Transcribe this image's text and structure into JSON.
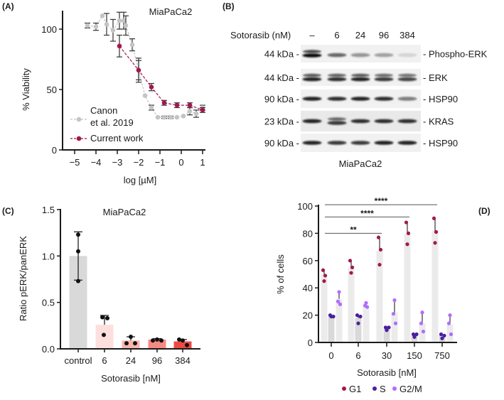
{
  "panel_labels": [
    "(A)",
    "(B)",
    "(C)",
    "(D)"
  ],
  "blot": {
    "treatment_label": "Sotorasib (nM)",
    "lanes": [
      "–",
      "6",
      "24",
      "96",
      "384"
    ],
    "cell_line": "MiaPaCa2",
    "rows": [
      {
        "size": "44 kDa -",
        "protein": "- Phospho-ERK",
        "band_intensity": [
          1.0,
          0.6,
          0.4,
          0.35,
          0.12
        ],
        "double": [
          true,
          false,
          false,
          false,
          false
        ]
      },
      {
        "size": "44 kDa -",
        "protein": "- ERK",
        "band_intensity": [
          0.9,
          0.85,
          0.9,
          0.8,
          0.75
        ],
        "double": [
          true,
          true,
          true,
          true,
          true
        ]
      },
      {
        "size": "90 kDa -",
        "protein": "- HSP90",
        "band_intensity": [
          0.9,
          0.85,
          0.9,
          0.85,
          0.5
        ],
        "double": [
          false,
          false,
          false,
          false,
          false
        ]
      },
      {
        "size": "23 kDa -",
        "protein": "- KRAS",
        "band_intensity": [
          0.9,
          0.8,
          0.85,
          0.85,
          0.85
        ],
        "double": [
          false,
          true,
          false,
          false,
          false
        ]
      },
      {
        "size": "90 kDa -",
        "protein": "- HSP90",
        "band_intensity": [
          0.9,
          0.8,
          0.8,
          0.9,
          0.9
        ],
        "double": [
          false,
          false,
          false,
          false,
          false
        ]
      }
    ]
  },
  "chart_data": [
    {
      "panel": "A",
      "type": "line",
      "title": "MiaPaCa2",
      "xlabel": "log [µM]",
      "ylabel": "% Viability",
      "xlim": [
        -5.5,
        1
      ],
      "ylim": [
        0,
        115
      ],
      "xticks": [
        "−5",
        "−4",
        "−3",
        "−2",
        "−1",
        "0",
        "1"
      ],
      "xtick_values": [
        -5,
        -4,
        -3,
        -2,
        -1,
        0,
        1
      ],
      "yticks": [
        "0",
        "50",
        "100"
      ],
      "ytick_values": [
        0,
        50,
        100
      ],
      "legend_position": "bottom-left",
      "series": [
        {
          "name": "Canon et al. 2019",
          "legend_lines": [
            "Canon",
            "et al. 2019"
          ],
          "color": "#c4c4c4",
          "x": [
            -4.4,
            -4.0,
            -3.7,
            -3.5,
            -3.2,
            -2.9,
            -2.7,
            -2.6,
            -2.3,
            -2.0,
            -1.7,
            -1.4,
            -1.1,
            -0.8,
            -0.5,
            -0.2,
            0.1,
            0.4,
            0.7,
            1.0
          ],
          "y": [
            103,
            102,
            111,
            104,
            99,
            107,
            107,
            103,
            87,
            66,
            45,
            35,
            27,
            27,
            27,
            27,
            28,
            32,
            30,
            35
          ],
          "err": [
            2,
            3,
            0,
            9,
            9,
            7,
            7,
            8,
            5,
            8,
            0,
            2,
            0,
            1,
            1,
            0,
            0,
            3,
            3,
            2
          ]
        },
        {
          "name": "Current work",
          "legend_lines": [
            "Current work"
          ],
          "color": "#a3174f",
          "x": [
            -2.9,
            -2.0,
            -1.4,
            -0.8,
            -0.2,
            0.4,
            1.0
          ],
          "y": [
            86,
            66,
            52,
            39,
            37,
            37,
            33
          ],
          "err": [
            9,
            10,
            3,
            2,
            2,
            2,
            2
          ]
        }
      ]
    },
    {
      "panel": "C",
      "type": "bar",
      "title": "MiaPaCa2",
      "xlabel": "Sotorasib [nM]",
      "ylabel": "Ratio pERK/panERK",
      "ylim": [
        0,
        1.5
      ],
      "yticks": [
        "0.0",
        "0.5",
        "1.0",
        "1.5"
      ],
      "ytick_values": [
        0,
        0.5,
        1.0,
        1.5
      ],
      "categories": [
        "control",
        "6",
        "24",
        "96",
        "384"
      ],
      "values": [
        1.0,
        0.26,
        0.09,
        0.1,
        0.08
      ],
      "sd": [
        0.26,
        0.1,
        0.04,
        0.01,
        0.02
      ],
      "points": [
        [
          1.23,
          1.05,
          0.73
        ],
        [
          0.34,
          0.33,
          0.15
        ],
        [
          0.13,
          0.06,
          0.06
        ],
        [
          0.09,
          0.1,
          0.09
        ],
        [
          0.1,
          0.09,
          0.04
        ]
      ],
      "colors": [
        "#d9d9d9",
        "#fde0dd",
        "#f7b3ad",
        "#f48b83",
        "#ee4a45"
      ]
    },
    {
      "panel": "D",
      "type": "bar",
      "xlabel": "Sotorasib [nM]",
      "ylabel": "% of cells",
      "ylim": [
        0,
        100
      ],
      "yticks": [
        "0",
        "20",
        "40",
        "60",
        "80",
        "100"
      ],
      "ytick_values": [
        0,
        20,
        40,
        60,
        80,
        100
      ],
      "categories": [
        "0",
        "6",
        "30",
        "150",
        "750"
      ],
      "legend_position": "bottom",
      "series": [
        {
          "name": "G1",
          "color": "#a3174f",
          "values": [
            50,
            55,
            67,
            80,
            82
          ],
          "points": [
            [
              53,
              49,
              45
            ],
            [
              60,
              55,
              51
            ],
            [
              77,
              68,
              57
            ],
            [
              88,
              80,
              72
            ],
            [
              91,
              81,
              73
            ]
          ]
        },
        {
          "name": "S",
          "color": "#4b1fa0",
          "values": [
            19,
            18,
            10,
            5,
            5
          ],
          "points": [
            [
              20,
              19,
              19
            ],
            [
              20,
              19,
              14
            ],
            [
              11,
              11,
              9
            ],
            [
              6,
              6,
              4
            ],
            [
              6,
              5,
              3
            ]
          ]
        },
        {
          "name": "G2/M",
          "color": "#b36bff",
          "values": [
            32,
            27,
            22,
            14,
            13
          ],
          "points": [
            [
              37,
              30,
              28
            ],
            [
              29,
              27,
              26
            ],
            [
              31,
              21,
              14
            ],
            [
              22,
              14,
              8
            ],
            [
              20,
              14,
              6
            ]
          ]
        }
      ],
      "significance": [
        {
          "from": "0",
          "to": "30",
          "label": "**",
          "y": 80
        },
        {
          "from": "0",
          "to": "150",
          "label": "****",
          "y": 92
        },
        {
          "from": "0",
          "to": "750",
          "label": "****",
          "y": 101
        }
      ]
    }
  ]
}
